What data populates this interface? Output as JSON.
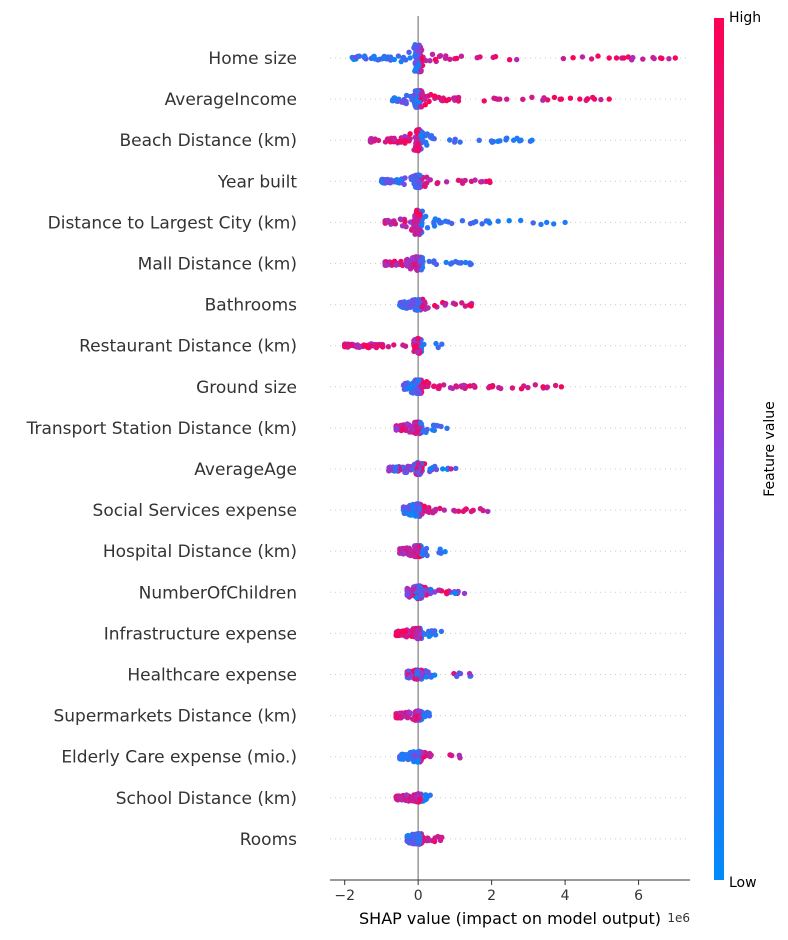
{
  "chart_data": {
    "type": "scatter",
    "subtype": "shap-beeswarm",
    "title": "",
    "xlabel": "SHAP value (impact on model output)",
    "x_offset_label": "1e6",
    "xlim": [
      -2.4,
      7.4
    ],
    "xticks": [
      -2,
      0,
      2,
      4,
      6
    ],
    "colorbar": {
      "label": "Feature value",
      "high": "High",
      "low": "Low",
      "low_color": "#008bfb",
      "mid_color": "#8a3fe0",
      "high_color": "#ff0052"
    },
    "features": [
      {
        "name": "Home size",
        "min": -1.8,
        "max": 7.1,
        "spread": 2.2,
        "blue_side": "left",
        "outliers": [
          5.2,
          5.4,
          5.6,
          6.6,
          7.0
        ]
      },
      {
        "name": "AverageIncome",
        "min": -0.7,
        "max": 5.2,
        "spread": 1.2,
        "blue_side": "left",
        "outliers": [
          3.9,
          4.4,
          4.6,
          4.8,
          5.2
        ]
      },
      {
        "name": "Beach Distance (km)",
        "min": -1.3,
        "max": 3.1,
        "spread": 1.6,
        "blue_side": "right",
        "outliers": [
          2.6,
          2.8,
          3.1
        ]
      },
      {
        "name": "Year built",
        "min": -1.0,
        "max": 2.1,
        "spread": 0.8,
        "blue_side": "left",
        "outliers": [
          -1.0
        ]
      },
      {
        "name": "Distance to Largest City (km)",
        "min": -0.9,
        "max": 4.0,
        "spread": 1.9,
        "blue_side": "right",
        "outliers": [
          3.5,
          4.0
        ]
      },
      {
        "name": "Mall Distance (km)",
        "min": -0.9,
        "max": 1.6,
        "spread": 0.9,
        "blue_side": "right",
        "outliers": []
      },
      {
        "name": "Bathrooms",
        "min": -0.5,
        "max": 1.5,
        "spread": 0.7,
        "blue_side": "left",
        "outliers": []
      },
      {
        "name": "Restaurant Distance (km)",
        "min": -2.0,
        "max": 0.8,
        "spread": 1.0,
        "blue_side": "right",
        "outliers": [
          -2.0,
          -1.1,
          -1.0
        ]
      },
      {
        "name": "Ground size",
        "min": -0.4,
        "max": 3.9,
        "spread": 0.9,
        "blue_side": "left",
        "outliers": [
          2.0,
          3.4,
          3.9
        ]
      },
      {
        "name": "Transport Station Distance (km)",
        "min": -0.6,
        "max": 1.0,
        "spread": 0.7,
        "blue_side": "right",
        "outliers": []
      },
      {
        "name": "AverageAge",
        "min": -0.8,
        "max": 1.1,
        "spread": 0.8,
        "blue_side": "mixed",
        "outliers": []
      },
      {
        "name": "Social Services expense",
        "min": -0.4,
        "max": 1.9,
        "spread": 0.8,
        "blue_side": "left",
        "outliers": []
      },
      {
        "name": "Hospital Distance (km)",
        "min": -0.5,
        "max": 0.9,
        "spread": 0.7,
        "blue_side": "right",
        "outliers": []
      },
      {
        "name": "NumberOfChildren",
        "min": -0.3,
        "max": 1.3,
        "spread": 0.8,
        "blue_side": "mixed",
        "outliers": []
      },
      {
        "name": "Infrastructure expense",
        "min": -0.6,
        "max": 0.7,
        "spread": 0.6,
        "blue_side": "right",
        "outliers": []
      },
      {
        "name": "Healthcare expense",
        "min": -0.3,
        "max": 1.5,
        "spread": 0.5,
        "blue_side": "mixed",
        "outliers": []
      },
      {
        "name": "Supermarkets Distance (km)",
        "min": -0.6,
        "max": 0.4,
        "spread": 0.5,
        "blue_side": "right",
        "outliers": []
      },
      {
        "name": "Elderly Care expense (mio.)",
        "min": -0.5,
        "max": 1.2,
        "spread": 0.6,
        "blue_side": "left",
        "outliers": []
      },
      {
        "name": "School Distance (km)",
        "min": -0.6,
        "max": 0.5,
        "spread": 0.4,
        "blue_side": "right",
        "outliers": []
      },
      {
        "name": "Rooms",
        "min": -0.3,
        "max": 0.7,
        "spread": 0.6,
        "blue_side": "left",
        "outliers": []
      }
    ]
  }
}
